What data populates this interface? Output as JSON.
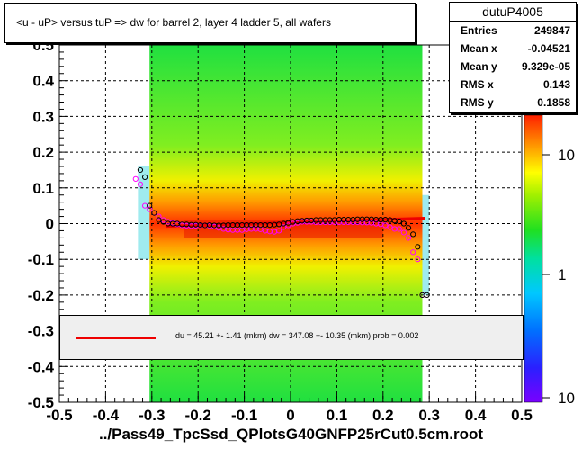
{
  "chart_data": {
    "type": "scatter",
    "title": "<u - uP>       versus  tuP =>  dw for barrel 2, layer 4 ladder 5, all wafers",
    "xlabel": "../Pass49_TpcSsd_QPlotsG40GNFP25rCut0.5cm.root",
    "ylabel": "",
    "xlim": [
      -0.5,
      0.5
    ],
    "ylim": [
      -0.5,
      0.5
    ],
    "x_ticks": [
      "-0.5",
      "-0.4",
      "-0.3",
      "-0.2",
      "-0.1",
      "0",
      "0.1",
      "0.2",
      "0.3",
      "0.4",
      "0.5"
    ],
    "y_ticks": [
      "-0.5",
      "-0.4",
      "-0.3",
      "-0.2",
      "-0.1",
      "0",
      "0.1",
      "0.2",
      "0.3",
      "0.4",
      "0.5"
    ],
    "z_ticks": [
      "10",
      "1",
      "10"
    ],
    "grid": true,
    "stats": {
      "name": "dutuP4005",
      "rows": [
        {
          "label": "Entries",
          "value": "249847"
        },
        {
          "label": "Mean x",
          "value": "-0.04521"
        },
        {
          "label": "Mean y",
          "value": "9.329e-05"
        },
        {
          "label": "RMS x",
          "value": "0.143"
        },
        {
          "label": "RMS y",
          "value": "0.1858"
        }
      ]
    },
    "fit_text": "du =   45.21 +-  1.41 (mkm) dw =  347.08 +- 10.35 (mkm) prob = 0.002",
    "fit_line": {
      "x": [
        -0.27,
        0.29
      ],
      "y": [
        -0.008,
        0.015
      ]
    },
    "profile_black": {
      "x": [
        -0.325,
        -0.315,
        -0.305,
        -0.295,
        -0.285,
        -0.275,
        -0.265,
        -0.255,
        -0.245,
        -0.235,
        -0.225,
        -0.215,
        -0.205,
        -0.195,
        -0.185,
        -0.175,
        -0.165,
        -0.155,
        -0.145,
        -0.135,
        -0.125,
        -0.115,
        -0.105,
        -0.095,
        -0.085,
        -0.075,
        -0.065,
        -0.055,
        -0.045,
        -0.035,
        -0.025,
        -0.015,
        -0.005,
        0.005,
        0.015,
        0.025,
        0.035,
        0.045,
        0.055,
        0.065,
        0.075,
        0.085,
        0.095,
        0.105,
        0.115,
        0.125,
        0.135,
        0.145,
        0.155,
        0.165,
        0.175,
        0.185,
        0.195,
        0.205,
        0.215,
        0.225,
        0.235,
        0.245,
        0.255,
        0.265,
        0.275,
        0.285,
        0.295
      ],
      "y": [
        0.15,
        0.13,
        0.05,
        0.03,
        0.01,
        0.005,
        0.0,
        0.0,
        0.0,
        -0.002,
        -0.002,
        -0.003,
        -0.003,
        -0.004,
        -0.005,
        -0.004,
        -0.005,
        -0.005,
        -0.005,
        -0.004,
        -0.004,
        -0.004,
        -0.004,
        -0.004,
        -0.004,
        -0.004,
        -0.004,
        -0.004,
        -0.004,
        -0.003,
        -0.002,
        0.0,
        0.002,
        0.005,
        0.007,
        0.008,
        0.009,
        0.009,
        0.01,
        0.01,
        0.01,
        0.01,
        0.01,
        0.011,
        0.011,
        0.011,
        0.011,
        0.012,
        0.012,
        0.012,
        0.012,
        0.011,
        0.011,
        0.011,
        0.01,
        0.008,
        0.006,
        0.0,
        -0.012,
        -0.03,
        -0.065,
        -0.2,
        -0.2
      ]
    },
    "profile_magenta": {
      "x": [
        -0.335,
        -0.325,
        -0.315,
        -0.305,
        -0.295,
        -0.285,
        -0.275,
        -0.265,
        -0.255,
        -0.245,
        -0.235,
        -0.225,
        -0.215,
        -0.205,
        -0.195,
        -0.185,
        -0.175,
        -0.165,
        -0.155,
        -0.145,
        -0.135,
        -0.125,
        -0.115,
        -0.105,
        -0.095,
        -0.085,
        -0.075,
        -0.065,
        -0.055,
        -0.045,
        -0.035,
        -0.025,
        -0.015,
        -0.005,
        0.005,
        0.015,
        0.025,
        0.035,
        0.045,
        0.055,
        0.065,
        0.075,
        0.085,
        0.095,
        0.105,
        0.115,
        0.125,
        0.135,
        0.145,
        0.155,
        0.165,
        0.175,
        0.185,
        0.195,
        0.205,
        0.215,
        0.225,
        0.235,
        0.245,
        0.255,
        0.265,
        0.275,
        0.285
      ],
      "y": [
        0.125,
        0.11,
        0.05,
        0.04,
        0.03,
        0.02,
        0.01,
        0.005,
        0.002,
        -0.002,
        -0.005,
        -0.006,
        -0.007,
        -0.006,
        -0.005,
        -0.005,
        -0.006,
        -0.008,
        -0.012,
        -0.015,
        -0.017,
        -0.018,
        -0.018,
        -0.018,
        -0.016,
        -0.015,
        -0.015,
        -0.016,
        -0.02,
        -0.022,
        -0.023,
        -0.02,
        -0.01,
        -0.005,
        0.0,
        0.002,
        0.005,
        0.005,
        0.005,
        0.004,
        0.004,
        0.004,
        0.004,
        0.004,
        0.004,
        0.004,
        0.004,
        0.004,
        0.004,
        0.003,
        0.003,
        0.002,
        0.0,
        -0.002,
        -0.005,
        -0.01,
        -0.015,
        -0.015,
        -0.025,
        -0.04,
        -0.08,
        -0.1,
        -0.2
      ]
    },
    "colors": {
      "fit": "#ee0000",
      "profile_black": "#000000",
      "profile_magenta": "#ff00ff",
      "frame": "#000000"
    }
  }
}
